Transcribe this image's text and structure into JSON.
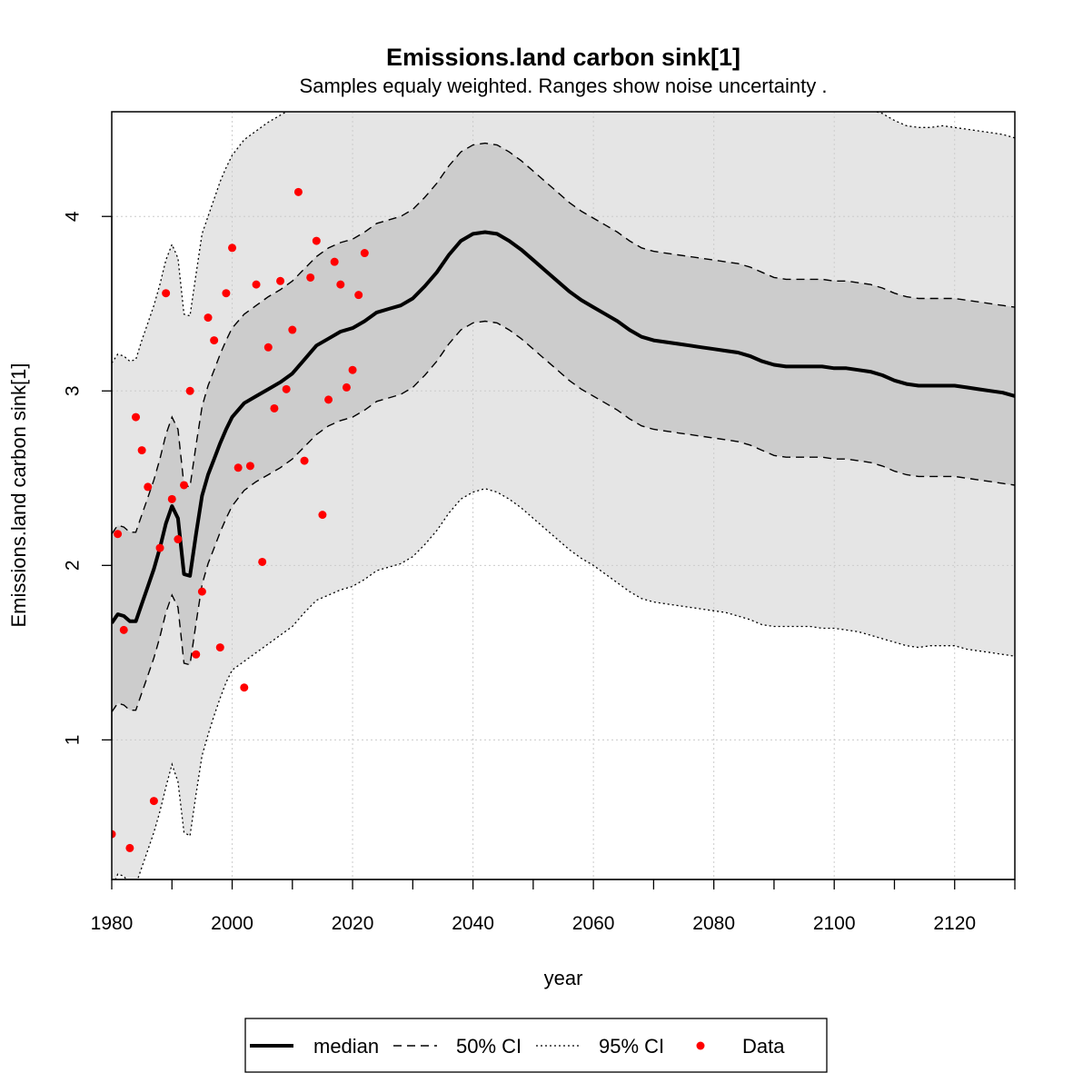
{
  "chart_data": {
    "type": "line",
    "title": "Emissions.land carbon sink[1]",
    "subtitle": "Samples equaly weighted. Ranges show  noise uncertainty .",
    "xlabel": "year",
    "ylabel": "Emissions.land carbon sink[1]",
    "xlim": [
      1980,
      2130
    ],
    "ylim": [
      0.2,
      4.6
    ],
    "x_ticks": [
      1980,
      2000,
      2020,
      2040,
      2060,
      2080,
      2100,
      2120
    ],
    "x_minor_ticks": [
      1990,
      2010,
      2030,
      2050,
      2070,
      2090,
      2110,
      2130
    ],
    "y_ticks": [
      1,
      2,
      3,
      4
    ],
    "grid": true,
    "legend_position": "bottom",
    "legend": [
      {
        "label": "median",
        "style": "solid-thick"
      },
      {
        "label": "50% CI",
        "style": "dashed"
      },
      {
        "label": "95% CI",
        "style": "dotted"
      },
      {
        "label": "Data",
        "style": "point"
      }
    ],
    "colors": {
      "median": "#000000",
      "band_50": "#cccccc",
      "band_95": "#e5e5e5",
      "data": "#ff0000",
      "grid": "#cccccc"
    },
    "series": [
      {
        "name": "median",
        "x": [
          1980,
          1981,
          1982,
          1983,
          1984,
          1985,
          1986,
          1987,
          1988,
          1989,
          1990,
          1991,
          1992,
          1993,
          1994,
          1995,
          1996,
          1997,
          1998,
          1999,
          2000,
          2002,
          2004,
          2006,
          2008,
          2010,
          2012,
          2014,
          2016,
          2018,
          2020,
          2022,
          2024,
          2026,
          2028,
          2030,
          2032,
          2034,
          2036,
          2038,
          2040,
          2042,
          2044,
          2046,
          2048,
          2050,
          2052,
          2054,
          2056,
          2058,
          2060,
          2062,
          2064,
          2066,
          2068,
          2070,
          2072,
          2074,
          2076,
          2078,
          2080,
          2082,
          2084,
          2086,
          2088,
          2090,
          2092,
          2094,
          2096,
          2098,
          2100,
          2102,
          2104,
          2106,
          2108,
          2110,
          2112,
          2114,
          2116,
          2118,
          2120,
          2122,
          2124,
          2126,
          2128,
          2130
        ],
        "values": [
          1.67,
          1.72,
          1.71,
          1.68,
          1.68,
          1.78,
          1.88,
          1.98,
          2.1,
          2.24,
          2.34,
          2.27,
          1.95,
          1.94,
          2.18,
          2.4,
          2.52,
          2.61,
          2.7,
          2.78,
          2.85,
          2.93,
          2.97,
          3.01,
          3.05,
          3.1,
          3.18,
          3.26,
          3.3,
          3.34,
          3.36,
          3.4,
          3.45,
          3.47,
          3.49,
          3.53,
          3.6,
          3.68,
          3.78,
          3.86,
          3.9,
          3.91,
          3.9,
          3.86,
          3.81,
          3.75,
          3.69,
          3.63,
          3.57,
          3.52,
          3.48,
          3.44,
          3.4,
          3.35,
          3.31,
          3.29,
          3.28,
          3.27,
          3.26,
          3.25,
          3.24,
          3.23,
          3.22,
          3.2,
          3.17,
          3.15,
          3.14,
          3.14,
          3.14,
          3.14,
          3.13,
          3.13,
          3.12,
          3.11,
          3.09,
          3.06,
          3.04,
          3.03,
          3.03,
          3.03,
          3.03,
          3.02,
          3.01,
          3.0,
          2.99,
          2.97
        ]
      },
      {
        "name": "50% CI",
        "x": [
          1980,
          1981,
          1982,
          1983,
          1984,
          1985,
          1986,
          1987,
          1988,
          1989,
          1990,
          1991,
          1992,
          1993,
          1994,
          1995,
          1996,
          1997,
          1998,
          1999,
          2000,
          2002,
          2004,
          2006,
          2008,
          2010,
          2012,
          2014,
          2016,
          2018,
          2020,
          2022,
          2024,
          2026,
          2028,
          2030,
          2032,
          2034,
          2036,
          2038,
          2040,
          2042,
          2044,
          2046,
          2048,
          2050,
          2052,
          2054,
          2056,
          2058,
          2060,
          2062,
          2064,
          2066,
          2068,
          2070,
          2072,
          2074,
          2076,
          2078,
          2080,
          2082,
          2084,
          2086,
          2088,
          2090,
          2092,
          2094,
          2096,
          2098,
          2100,
          2102,
          2104,
          2106,
          2108,
          2110,
          2112,
          2114,
          2116,
          2118,
          2120,
          2122,
          2124,
          2126,
          2128,
          2130
        ],
        "lower": [
          1.16,
          1.21,
          1.2,
          1.17,
          1.17,
          1.27,
          1.37,
          1.47,
          1.59,
          1.73,
          1.83,
          1.76,
          1.44,
          1.43,
          1.67,
          1.89,
          2.01,
          2.1,
          2.19,
          2.27,
          2.34,
          2.43,
          2.48,
          2.52,
          2.56,
          2.61,
          2.68,
          2.75,
          2.8,
          2.83,
          2.85,
          2.89,
          2.94,
          2.96,
          2.98,
          3.02,
          3.09,
          3.17,
          3.27,
          3.35,
          3.39,
          3.4,
          3.39,
          3.35,
          3.3,
          3.24,
          3.18,
          3.12,
          3.06,
          3.01,
          2.97,
          2.93,
          2.89,
          2.84,
          2.8,
          2.78,
          2.77,
          2.76,
          2.75,
          2.74,
          2.73,
          2.72,
          2.71,
          2.69,
          2.66,
          2.63,
          2.62,
          2.62,
          2.62,
          2.62,
          2.61,
          2.61,
          2.6,
          2.59,
          2.57,
          2.54,
          2.52,
          2.51,
          2.51,
          2.51,
          2.51,
          2.5,
          2.49,
          2.48,
          2.47,
          2.46
        ],
        "upper": [
          2.18,
          2.23,
          2.22,
          2.19,
          2.19,
          2.29,
          2.39,
          2.49,
          2.61,
          2.75,
          2.85,
          2.78,
          2.46,
          2.45,
          2.69,
          2.91,
          3.03,
          3.12,
          3.21,
          3.29,
          3.36,
          3.44,
          3.49,
          3.54,
          3.58,
          3.63,
          3.7,
          3.77,
          3.82,
          3.85,
          3.87,
          3.91,
          3.96,
          3.98,
          4.0,
          4.04,
          4.11,
          4.19,
          4.29,
          4.37,
          4.41,
          4.42,
          4.41,
          4.37,
          4.32,
          4.26,
          4.2,
          4.14,
          4.08,
          4.03,
          3.99,
          3.95,
          3.91,
          3.86,
          3.82,
          3.8,
          3.79,
          3.78,
          3.77,
          3.76,
          3.75,
          3.74,
          3.73,
          3.71,
          3.68,
          3.65,
          3.64,
          3.64,
          3.64,
          3.64,
          3.63,
          3.63,
          3.62,
          3.61,
          3.59,
          3.56,
          3.54,
          3.53,
          3.53,
          3.53,
          3.53,
          3.52,
          3.51,
          3.5,
          3.49,
          3.48
        ]
      },
      {
        "name": "95% CI",
        "x": [
          1980,
          1981,
          1982,
          1983,
          1984,
          1985,
          1986,
          1987,
          1988,
          1989,
          1990,
          1991,
          1992,
          1993,
          1994,
          1995,
          1996,
          1997,
          1998,
          1999,
          2000,
          2002,
          2004,
          2006,
          2008,
          2010,
          2012,
          2014,
          2016,
          2018,
          2020,
          2022,
          2024,
          2026,
          2028,
          2030,
          2032,
          2034,
          2036,
          2038,
          2040,
          2042,
          2044,
          2046,
          2048,
          2050,
          2052,
          2054,
          2056,
          2058,
          2060,
          2062,
          2064,
          2066,
          2068,
          2070,
          2072,
          2074,
          2076,
          2078,
          2080,
          2082,
          2084,
          2086,
          2088,
          2090,
          2092,
          2094,
          2096,
          2098,
          2100,
          2102,
          2104,
          2106,
          2108,
          2110,
          2112,
          2114,
          2116,
          2118,
          2120,
          2122,
          2124,
          2126,
          2128,
          2130
        ],
        "lower": [
          0.15,
          0.23,
          0.22,
          0.17,
          0.17,
          0.27,
          0.37,
          0.47,
          0.59,
          0.73,
          0.86,
          0.76,
          0.47,
          0.45,
          0.69,
          0.91,
          1.03,
          1.14,
          1.24,
          1.33,
          1.4,
          1.45,
          1.5,
          1.55,
          1.6,
          1.65,
          1.73,
          1.8,
          1.83,
          1.86,
          1.88,
          1.92,
          1.97,
          1.99,
          2.01,
          2.05,
          2.12,
          2.2,
          2.3,
          2.38,
          2.42,
          2.44,
          2.42,
          2.38,
          2.33,
          2.27,
          2.21,
          2.15,
          2.09,
          2.04,
          2.0,
          1.95,
          1.9,
          1.85,
          1.81,
          1.79,
          1.78,
          1.77,
          1.76,
          1.75,
          1.74,
          1.73,
          1.71,
          1.69,
          1.66,
          1.65,
          1.65,
          1.65,
          1.65,
          1.64,
          1.64,
          1.63,
          1.62,
          1.6,
          1.58,
          1.56,
          1.54,
          1.53,
          1.54,
          1.54,
          1.54,
          1.52,
          1.51,
          1.5,
          1.49,
          1.48
        ],
        "upper": [
          3.16,
          3.21,
          3.2,
          3.17,
          3.18,
          3.29,
          3.39,
          3.49,
          3.61,
          3.75,
          3.84,
          3.76,
          3.44,
          3.43,
          3.67,
          3.9,
          4.0,
          4.1,
          4.2,
          4.28,
          4.35,
          4.44,
          4.49,
          4.54,
          4.58,
          4.62,
          4.7,
          4.77,
          4.82,
          4.85,
          4.87,
          4.91,
          4.96,
          4.98,
          5.0,
          5.04,
          5.11,
          5.19,
          5.29,
          5.37,
          5.41,
          5.42,
          5.41,
          5.37,
          5.32,
          5.26,
          5.2,
          5.14,
          5.08,
          5.03,
          4.99,
          4.95,
          4.91,
          4.86,
          4.82,
          4.8,
          4.79,
          4.78,
          4.77,
          4.76,
          4.75,
          4.74,
          4.73,
          4.71,
          4.68,
          4.65,
          4.64,
          4.64,
          4.64,
          4.64,
          4.63,
          4.63,
          4.62,
          4.61,
          4.59,
          4.55,
          4.52,
          4.51,
          4.51,
          4.52,
          4.51,
          4.5,
          4.49,
          4.48,
          4.47,
          4.45
        ]
      },
      {
        "name": "Data",
        "x": [
          1980,
          1981,
          1982,
          1983,
          1984,
          1985,
          1986,
          1987,
          1988,
          1989,
          1990,
          1991,
          1992,
          1993,
          1994,
          1995,
          1996,
          1997,
          1998,
          1999,
          2000,
          2001,
          2002,
          2003,
          2004,
          2005,
          2006,
          2007,
          2008,
          2009,
          2010,
          2011,
          2012,
          2013,
          2014,
          2015,
          2016,
          2017,
          2018,
          2019,
          2020,
          2021,
          2022
        ],
        "values": [
          0.46,
          2.18,
          1.63,
          0.38,
          2.85,
          2.66,
          2.45,
          0.65,
          2.1,
          3.56,
          2.38,
          2.15,
          2.46,
          3.0,
          1.49,
          1.85,
          3.42,
          3.29,
          1.53,
          3.56,
          3.82,
          2.56,
          1.3,
          2.57,
          3.61,
          2.02,
          3.25,
          2.9,
          3.63,
          3.01,
          3.35,
          4.14,
          2.6,
          3.65,
          3.86,
          2.29,
          2.95,
          3.74,
          3.61,
          3.02,
          3.12,
          3.55,
          3.79
        ]
      }
    ]
  }
}
